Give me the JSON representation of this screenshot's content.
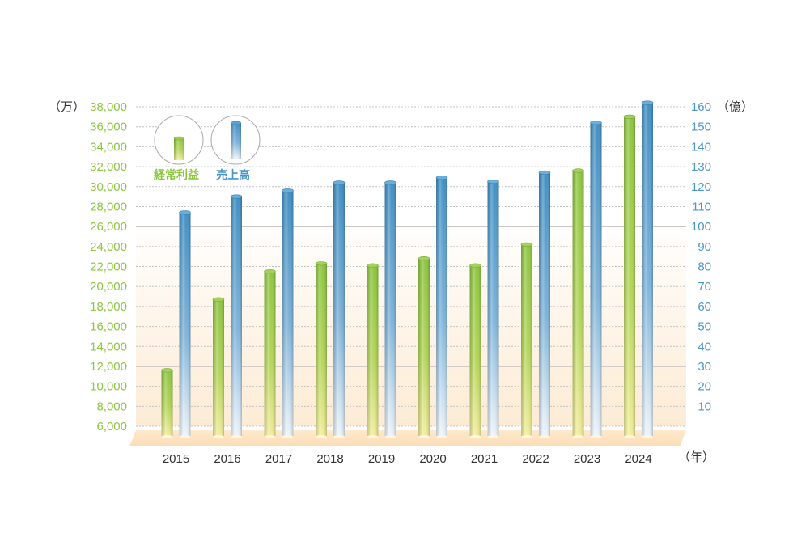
{
  "chart_data": {
    "type": "bar",
    "categories": [
      "2015",
      "2016",
      "2017",
      "2018",
      "2019",
      "2020",
      "2021",
      "2022",
      "2023",
      "2024"
    ],
    "series": [
      {
        "name": "経常利益",
        "axis": "left",
        "color": "#8cc63f",
        "values": [
          11600,
          18700,
          21500,
          22300,
          22100,
          22800,
          22100,
          24200,
          31600,
          37000
        ]
      },
      {
        "name": "売上高",
        "axis": "right",
        "color": "#4a96c8",
        "values": [
          107,
          115,
          118,
          122,
          122,
          124.5,
          122.5,
          127,
          152,
          162
        ]
      }
    ],
    "y_left": {
      "unit_label": "（万）",
      "min": 6000,
      "max": 38000,
      "ticks": [
        "6,000",
        "8,000",
        "10,000",
        "12,000",
        "14,000",
        "16,000",
        "18,000",
        "20,000",
        "22,000",
        "24,000",
        "26,000",
        "28,000",
        "30,000",
        "32,000",
        "34,000",
        "36,000",
        "38,000"
      ],
      "color": "#8cc63f"
    },
    "y_right": {
      "unit_label": "（億）",
      "min": 0,
      "max": 160,
      "ticks": [
        "10",
        "20",
        "30",
        "40",
        "50",
        "60",
        "70",
        "80",
        "90",
        "100",
        "110",
        "120",
        "130",
        "140",
        "150",
        "160"
      ],
      "color": "#4a96c8"
    },
    "x_unit_label": "（年）",
    "grid": true,
    "legend_position": "top-left"
  }
}
